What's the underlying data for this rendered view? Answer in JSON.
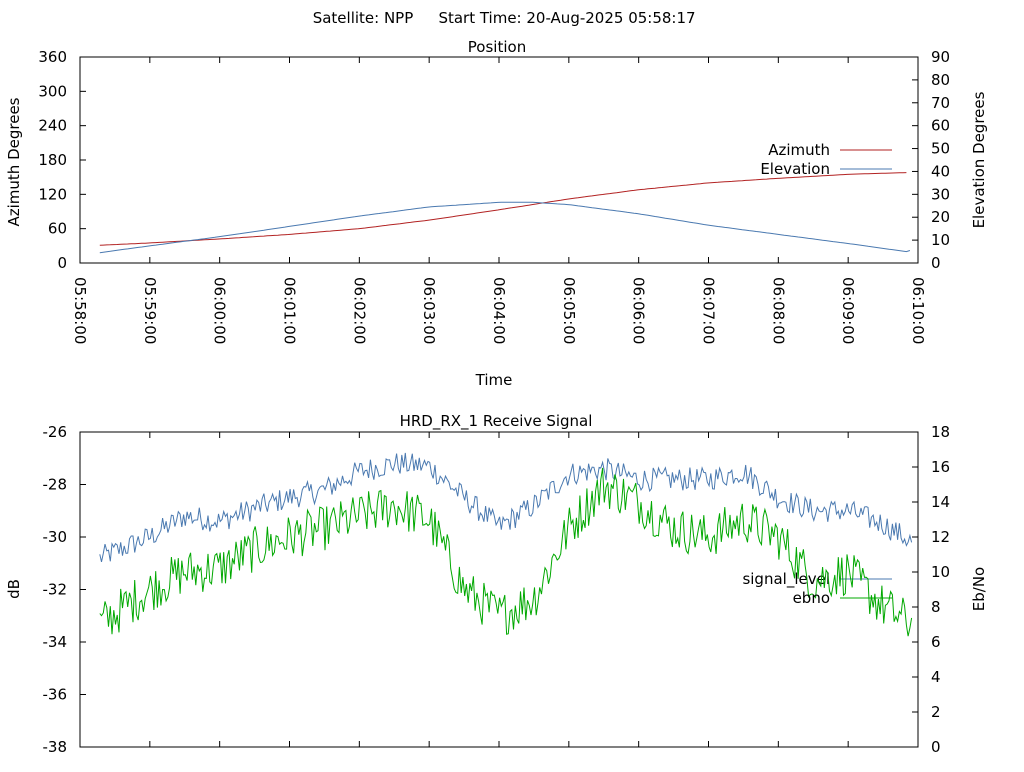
{
  "header": {
    "satellite_label": "Satellite: NPP",
    "start_time_label": "Start Time: 20-Aug-2025 05:58:17"
  },
  "colors": {
    "azimuth": "#b22222",
    "elevation": "#4a79b0",
    "signal": "#4a79b0",
    "ebno": "#00a800",
    "axis": "#000000"
  },
  "chart_data": [
    {
      "type": "line",
      "title": "Position",
      "xlabel": "Time",
      "ylabel_left": "Azimuth Degrees",
      "ylabel_right": "Elevation Degrees",
      "xlim": [
        "05:58:00",
        "06:10:00"
      ],
      "ylim_left": [
        0,
        360
      ],
      "ylim_right": [
        0,
        90
      ],
      "x_ticks": [
        "05:58:00",
        "05:59:00",
        "06:00:00",
        "06:01:00",
        "06:02:00",
        "06:03:00",
        "06:04:00",
        "06:05:00",
        "06:06:00",
        "06:07:00",
        "06:08:00",
        "06:09:00",
        "06:10:00"
      ],
      "y_ticks_left": [
        0,
        60,
        120,
        180,
        240,
        300,
        360
      ],
      "y_ticks_right": [
        0,
        10,
        20,
        30,
        40,
        50,
        60,
        70,
        80,
        90
      ],
      "legend": "right",
      "series": [
        {
          "name": "Azimuth",
          "axis": "left",
          "x": [
            "05:58:17",
            "05:59:00",
            "06:00:00",
            "06:01:00",
            "06:02:00",
            "06:03:00",
            "06:04:00",
            "06:05:00",
            "06:06:00",
            "06:07:00",
            "06:08:00",
            "06:09:00",
            "06:09:50"
          ],
          "values": [
            31,
            35,
            42,
            50,
            60,
            75,
            93,
            112,
            128,
            140,
            148,
            155,
            158
          ]
        },
        {
          "name": "Elevation",
          "axis": "right",
          "x": [
            "05:58:17",
            "05:59:00",
            "06:00:00",
            "06:01:00",
            "06:02:00",
            "06:03:00",
            "06:04:00",
            "06:04:30",
            "06:05:00",
            "06:06:00",
            "06:07:00",
            "06:08:00",
            "06:09:00",
            "06:09:50",
            "06:09:55"
          ],
          "values": [
            4.5,
            7.5,
            11.5,
            16,
            20.5,
            24.5,
            26.5,
            26.5,
            25.5,
            21.5,
            16.5,
            12.5,
            8.5,
            5,
            5.8
          ]
        }
      ]
    },
    {
      "type": "line",
      "title": "HRD_RX_1 Receive Signal",
      "ylabel_left": "dB",
      "ylabel_right": "Eb/No",
      "ylim_left": [
        -38,
        -26
      ],
      "ylim_right": [
        0,
        18
      ],
      "y_ticks_left": [
        -38,
        -36,
        -34,
        -32,
        -30,
        -28,
        -26
      ],
      "y_ticks_right": [
        0,
        2,
        4,
        6,
        8,
        10,
        12,
        14,
        16,
        18
      ],
      "legend": "right",
      "series": [
        {
          "name": "signal_level",
          "axis": "left",
          "x": [
            "05:58:17",
            "05:59:00",
            "05:59:30",
            "06:00:00",
            "06:00:30",
            "06:01:00",
            "06:01:30",
            "06:02:00",
            "06:02:30",
            "06:03:00",
            "06:03:30",
            "06:04:00",
            "06:04:30",
            "06:05:00",
            "06:05:30",
            "06:06:00",
            "06:06:30",
            "06:07:00",
            "06:07:30",
            "06:08:00",
            "06:08:30",
            "06:09:00",
            "06:09:30",
            "06:09:55"
          ],
          "values": [
            -30.8,
            -30.0,
            -29.2,
            -29.4,
            -28.9,
            -28.5,
            -28.2,
            -27.5,
            -27.2,
            -27.3,
            -28.5,
            -29.6,
            -28.8,
            -27.6,
            -27.4,
            -27.8,
            -27.8,
            -27.8,
            -27.5,
            -28.5,
            -29.0,
            -29.0,
            -29.5,
            -30.2
          ]
        },
        {
          "name": "ebno",
          "axis": "right",
          "x": [
            "05:58:17",
            "05:59:00",
            "05:59:30",
            "06:00:00",
            "06:00:30",
            "06:01:00",
            "06:01:30",
            "06:02:00",
            "06:02:30",
            "06:03:00",
            "06:03:30",
            "06:04:00",
            "06:04:30",
            "06:05:00",
            "06:05:30",
            "06:06:00",
            "06:06:30",
            "06:07:00",
            "06:07:30",
            "06:08:00",
            "06:08:30",
            "06:09:00",
            "06:09:30",
            "06:09:55"
          ],
          "values": [
            7.0,
            9.0,
            10.0,
            10.2,
            11.3,
            12.0,
            12.5,
            13.2,
            13.8,
            13.0,
            9.0,
            7.5,
            8.5,
            12.5,
            15.0,
            14.0,
            12.5,
            12.0,
            13.0,
            12.0,
            9.5,
            10.0,
            8.0,
            7.0
          ]
        }
      ]
    }
  ]
}
